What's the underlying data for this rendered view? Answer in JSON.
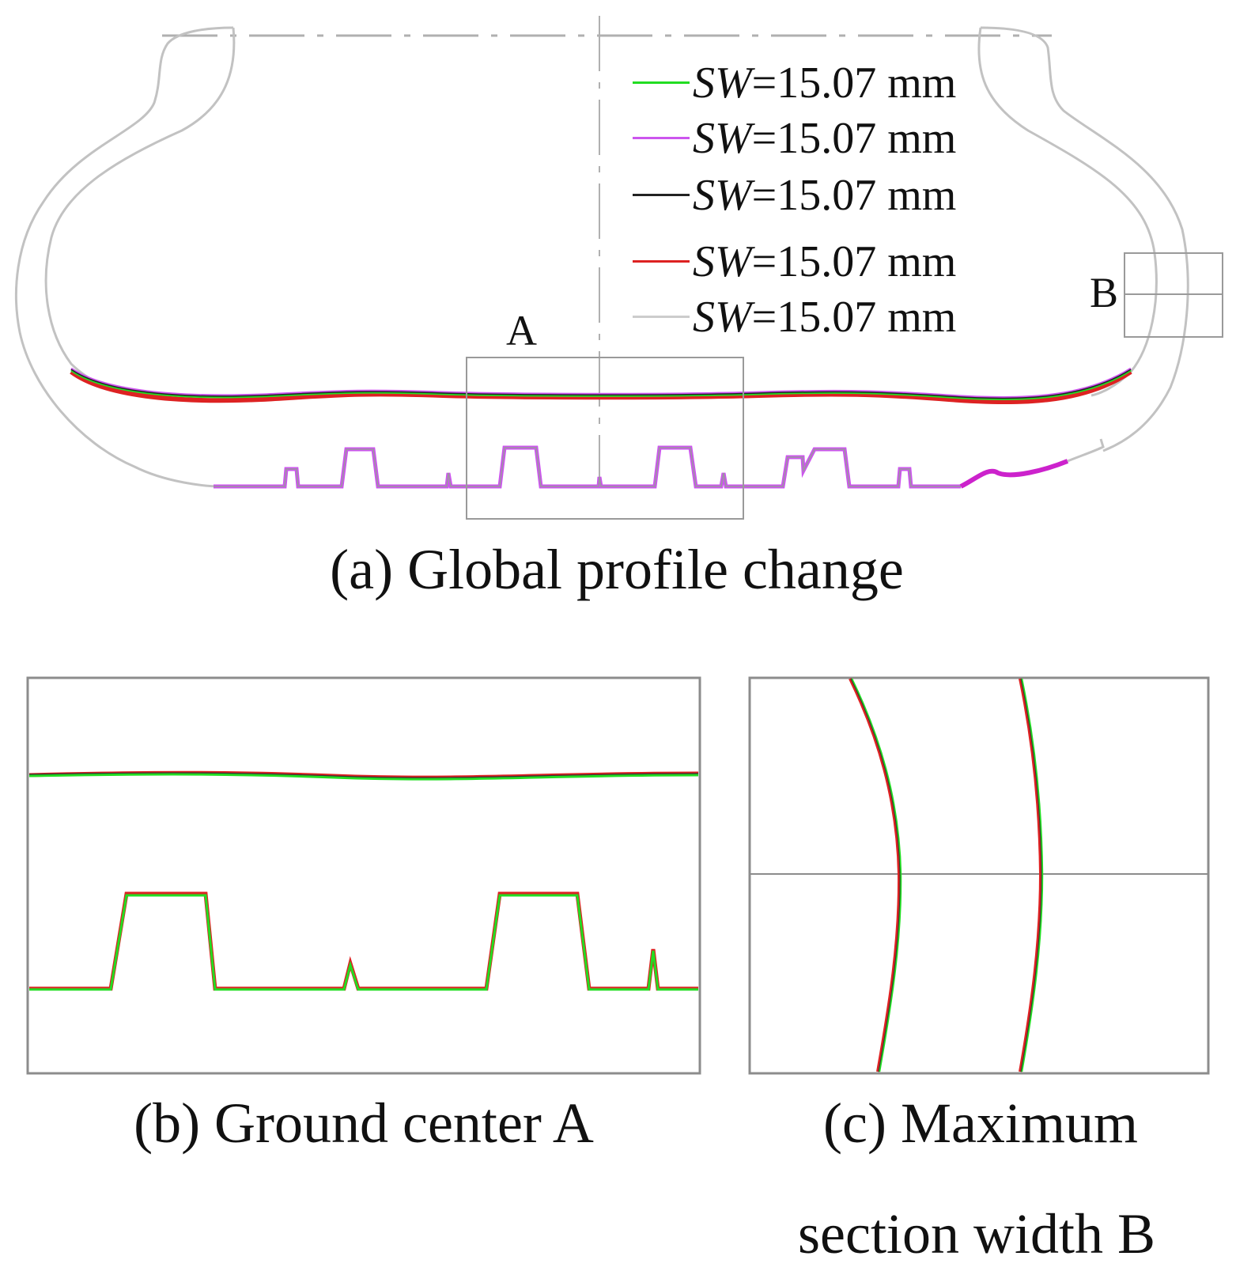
{
  "legend": {
    "items": [
      {
        "var": "SW",
        "rest": "=15.07 mm",
        "color": "#22dd22"
      },
      {
        "var": "SW",
        "rest": "=15.07 mm",
        "color": "#cc55ee"
      },
      {
        "var": "SW",
        "rest": "=15.07 mm",
        "color": "#222222"
      },
      {
        "var": "SW",
        "rest": "=15.07 mm",
        "color": "#dd2222"
      },
      {
        "var": "SW",
        "rest": "=15.07 mm",
        "color": "#cccccc"
      }
    ]
  },
  "labels": {
    "box_a": "A",
    "box_b": "B"
  },
  "captions": {
    "a": "(a) Global profile change",
    "b": "(b) Ground center A",
    "c_line1": "(c) Maximum",
    "c_line2": "section width B"
  },
  "colors": {
    "outline": "#bdbdbd",
    "frame": "#8c8c8c",
    "green": "#22dd22",
    "purple": "#cc55ee",
    "black": "#222222",
    "red": "#dd2222",
    "gray": "#cccccc"
  }
}
